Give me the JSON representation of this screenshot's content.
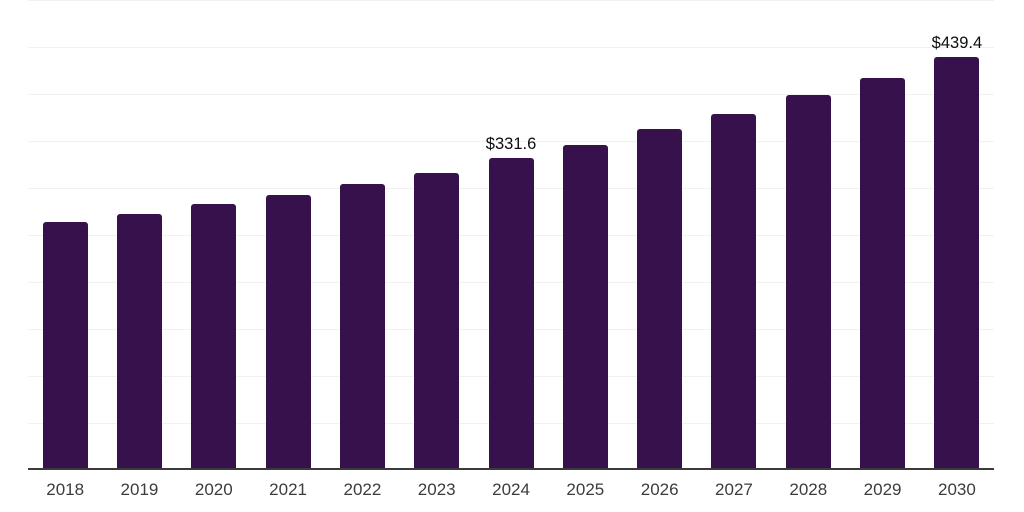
{
  "chart_data": {
    "type": "bar",
    "title": "",
    "xlabel": "",
    "ylabel": "",
    "categories": [
      "2018",
      "2019",
      "2020",
      "2021",
      "2022",
      "2023",
      "2024",
      "2025",
      "2026",
      "2027",
      "2028",
      "2029",
      "2030"
    ],
    "values": [
      263.5,
      272.8,
      283.0,
      292.6,
      304.0,
      316.3,
      331.6,
      345.7,
      362.4,
      378.4,
      398.9,
      416.7,
      439.4
    ],
    "data_labels": {
      "2024": "$331.6",
      "2030": "$439.4"
    },
    "ylim": [
      0,
      500
    ],
    "gridline_step": 50,
    "grid": true,
    "legend": false,
    "y_axis_tick_labels_visible": false
  },
  "colors": {
    "bar": "#36114b",
    "gridline": "#f1f1f1",
    "axis_line": "#3b3b3b",
    "tick_label": "#3c3c3c",
    "value_label": "#0d0d0d",
    "background": "#ffffff"
  }
}
